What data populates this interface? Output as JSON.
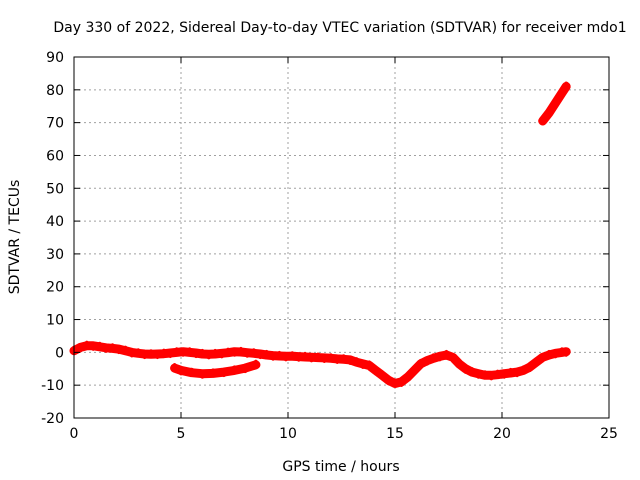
{
  "chart_data": {
    "type": "scatter",
    "title": "Day 330 of 2022, Sidereal Day-to-day VTEC variation (SDTVAR) for receiver mdo1",
    "xlabel": "GPS time / hours",
    "ylabel": "SDTVAR / TECUs",
    "xlim": [
      0,
      25
    ],
    "ylim": [
      -20,
      90
    ],
    "xticks": [
      0,
      5,
      10,
      15,
      20,
      25
    ],
    "yticks": [
      -20,
      -10,
      0,
      10,
      20,
      30,
      40,
      50,
      60,
      70,
      80,
      90
    ],
    "grid": true,
    "series_color": "#ff0000",
    "series": [
      {
        "name": "main trace",
        "x": [
          0,
          0.3,
          0.6,
          0.9,
          1.2,
          1.5,
          1.8,
          2.1,
          2.4,
          2.7,
          3.0,
          3.3,
          3.6,
          3.9,
          4.2,
          4.5,
          4.8,
          5.1,
          5.4,
          5.7,
          6.0,
          6.3,
          6.6,
          6.9,
          7.2,
          7.5,
          7.8,
          8.1,
          8.4,
          8.7,
          9.0,
          9.3,
          9.6,
          9.9,
          10.2,
          10.5,
          10.8,
          11.1,
          11.4,
          11.7,
          12.0,
          12.3,
          12.6,
          12.9,
          13.2,
          13.5,
          13.8,
          14.1,
          14.4,
          14.7,
          15.0,
          15.3,
          15.6,
          15.9,
          16.2,
          16.5,
          16.8,
          17.1,
          17.4,
          17.7,
          18.0,
          18.3,
          18.6,
          18.9,
          19.2,
          19.5,
          19.8,
          20.1,
          20.4,
          20.7,
          21.0,
          21.3,
          21.6,
          21.9,
          22.2,
          22.5,
          22.8,
          23.0
        ],
        "y": [
          0.5,
          1.5,
          2.0,
          2.0,
          1.7,
          1.4,
          1.2,
          1.0,
          0.5,
          0.0,
          -0.3,
          -0.5,
          -0.6,
          -0.5,
          -0.4,
          -0.2,
          0.0,
          0.2,
          0.0,
          -0.2,
          -0.5,
          -0.6,
          -0.5,
          -0.3,
          -0.1,
          0.2,
          0.1,
          -0.1,
          -0.3,
          -0.5,
          -0.8,
          -1.0,
          -1.1,
          -1.2,
          -1.2,
          -1.3,
          -1.4,
          -1.5,
          -1.6,
          -1.7,
          -1.8,
          -2.0,
          -2.1,
          -2.3,
          -3.0,
          -3.5,
          -4.0,
          -5.5,
          -7.0,
          -8.5,
          -9.5,
          -9.0,
          -7.5,
          -5.5,
          -3.5,
          -2.5,
          -1.8,
          -1.2,
          -0.8,
          -1.5,
          -3.5,
          -5.0,
          -6.0,
          -6.5,
          -7.0,
          -7.0,
          -6.8,
          -6.5,
          -6.3,
          -6.0,
          -5.5,
          -4.5,
          -3.0,
          -1.5,
          -0.8,
          -0.3,
          0.0,
          0.2
        ]
      },
      {
        "name": "secondary trace",
        "x": [
          4.7,
          5.0,
          5.5,
          6.0,
          6.5,
          7.0,
          7.5,
          8.0,
          8.5
        ],
        "y": [
          -4.8,
          -5.5,
          -6.2,
          -6.5,
          -6.4,
          -6.0,
          -5.5,
          -4.8,
          -3.8
        ]
      },
      {
        "name": "upper trace",
        "x": [
          21.9,
          22.2,
          22.5,
          22.8,
          23.0
        ],
        "y": [
          70.5,
          73.0,
          76.0,
          79.0,
          81.0
        ]
      }
    ]
  }
}
